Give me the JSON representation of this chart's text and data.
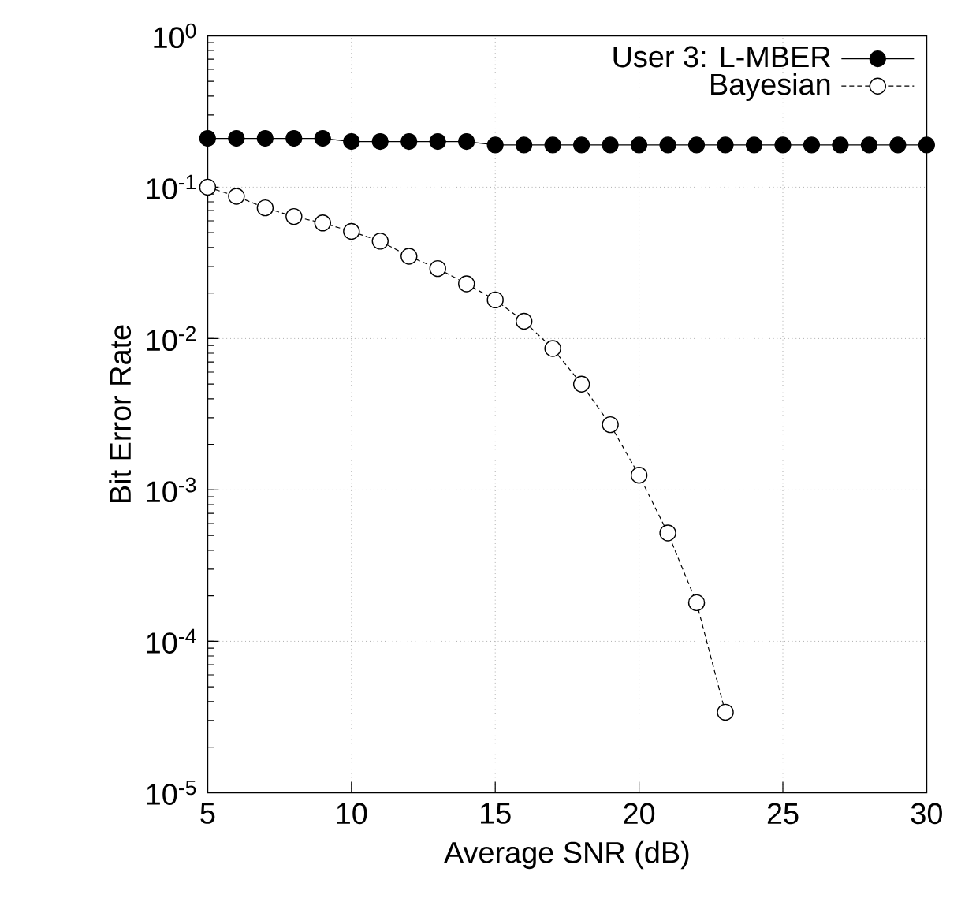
{
  "chart_data": {
    "type": "line",
    "xlabel": "Average SNR (dB)",
    "ylabel": "Bit Error Rate",
    "xlim": [
      5,
      30
    ],
    "xticks": [
      5,
      10,
      15,
      20,
      25,
      30
    ],
    "ylim": [
      1e-05,
      1
    ],
    "log": "y",
    "yticks": [
      {
        "value": 1e-05,
        "label": "10$^{-5}$"
      },
      {
        "value": 0.0001,
        "label": "10$^{-4}$"
      },
      {
        "value": 0.001,
        "label": "10$^{-3}$"
      },
      {
        "value": 0.01,
        "label": "10$^{-2}$"
      },
      {
        "value": 0.1,
        "label": "10$^{-1}$"
      },
      {
        "value": 1,
        "label": "10$^{0}$"
      }
    ],
    "grid": true,
    "legend": "top right",
    "marker": "circle",
    "x": [
      5,
      6,
      7,
      8,
      9,
      10,
      11,
      12,
      13,
      14,
      15,
      16,
      17,
      18,
      19,
      20,
      21,
      22,
      23,
      24,
      25,
      26,
      27,
      28,
      29,
      30
    ],
    "series": [
      {
        "name": "User 3:   L-MBER",
        "color": "#000000",
        "line_style": "solid",
        "values": [
          0.21,
          0.21,
          0.21,
          0.21,
          0.21,
          0.2,
          0.2,
          0.2,
          0.2,
          0.2,
          0.19,
          0.19,
          0.19,
          0.19,
          0.19,
          0.19,
          0.19,
          0.19,
          0.19,
          0.19,
          0.19,
          0.19,
          0.19,
          0.19,
          0.19,
          0.19
        ]
      },
      {
        "name": "Bayesian",
        "color": "#000000",
        "line_style": "dashed",
        "values": [
          0.1,
          0.087,
          0.073,
          0.064,
          0.058,
          0.051,
          0.044,
          0.035,
          0.029,
          0.023,
          0.018,
          0.013,
          0.0086,
          0.005,
          0.0027,
          0.00125,
          0.00052,
          0.00018,
          3.4e-05,
          null,
          null,
          null,
          null,
          null,
          null,
          null
        ]
      }
    ]
  }
}
